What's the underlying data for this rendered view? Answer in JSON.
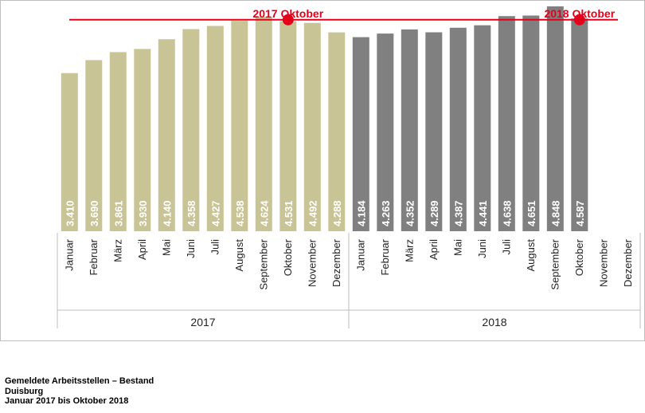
{
  "chart_data": {
    "type": "bar",
    "categories": [
      "Januar",
      "Februar",
      "März",
      "April",
      "Mai",
      "Juni",
      "Juli",
      "August",
      "September",
      "Oktober",
      "November",
      "Dezember"
    ],
    "series": [
      {
        "name": "2017",
        "values": [
          3410,
          3690,
          3861,
          3930,
          4140,
          4358,
          4427,
          4538,
          4624,
          4531,
          4492,
          4288
        ],
        "labels": [
          "3.410",
          "3.690",
          "3.861",
          "3.930",
          "4.140",
          "4.358",
          "4.427",
          "4.538",
          "4.624",
          "4.531",
          "4.492",
          "4.288"
        ],
        "color": "#c8c496"
      },
      {
        "name": "2018",
        "values": [
          4184,
          4263,
          4352,
          4289,
          4387,
          4441,
          4638,
          4651,
          4848,
          4587,
          null,
          null
        ],
        "labels": [
          "4.184",
          "4.263",
          "4.352",
          "4.289",
          "4.387",
          "4.441",
          "4.638",
          "4.651",
          "4.848",
          "4.587",
          "",
          ""
        ],
        "color": "#808080"
      }
    ],
    "group_labels": [
      "2017",
      "2018"
    ],
    "reference_line": {
      "value": 4560,
      "color": "#e3001b"
    },
    "markers": [
      {
        "label": "2017 Oktober",
        "group": 0,
        "month_index": 9
      },
      {
        "label": "2018 Oktober",
        "group": 1,
        "month_index": 9
      }
    ],
    "ylim": [
      0,
      4900
    ],
    "grid": false
  },
  "footer": {
    "line1": "Gemeldete Arbeitsstellen – Bestand",
    "line2": "Duisburg",
    "line3": "Januar 2017 bis Oktober 2018"
  }
}
